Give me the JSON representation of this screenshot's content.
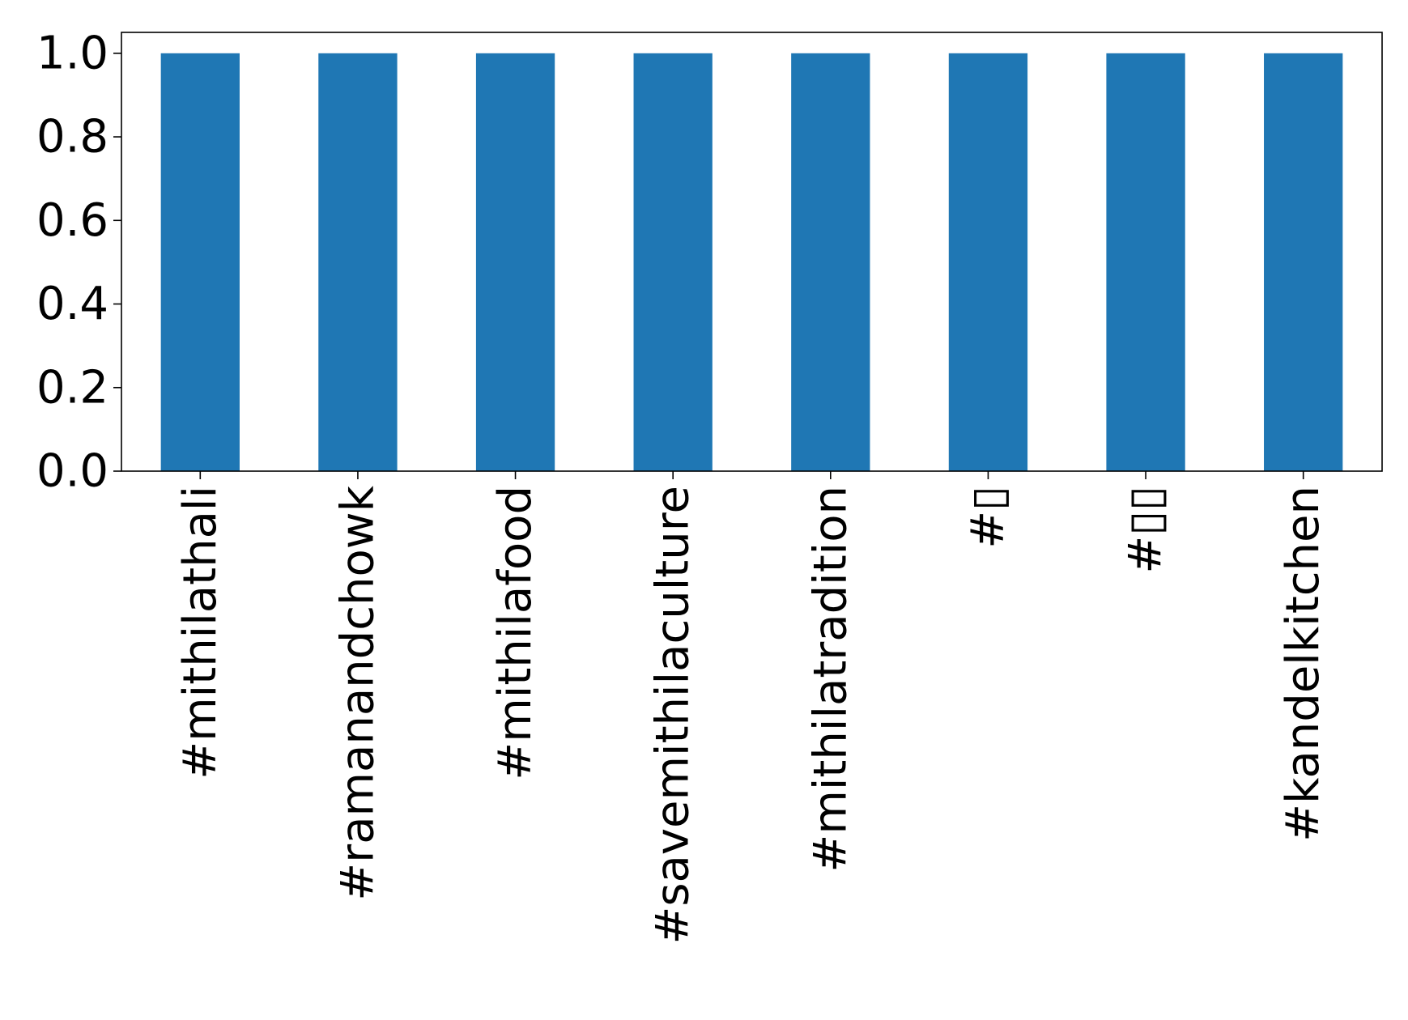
{
  "chart_data": {
    "type": "bar",
    "categories": [
      "#mithilathali",
      "#ramanandchowk",
      "#mithilafood",
      "#savemithilaculture",
      "#mithilatradition",
      "#▯",
      "#▯▯",
      "#kandelkitchen"
    ],
    "values": [
      1,
      1,
      1,
      1,
      1,
      1,
      1,
      1
    ],
    "ylim": [
      0,
      1.05
    ],
    "yticks": [
      "0.0",
      "0.2",
      "0.4",
      "0.6",
      "0.8",
      "1.0"
    ],
    "title": "",
    "xlabel": "",
    "ylabel": "",
    "bar_color": "#1f77b4",
    "grid": false,
    "legend": "none"
  }
}
